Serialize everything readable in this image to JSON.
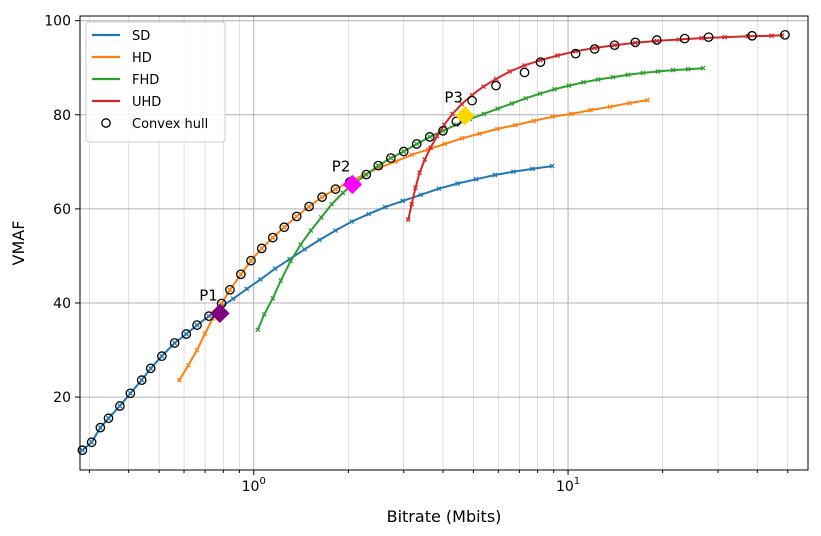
{
  "chart_data": {
    "type": "line",
    "title": "",
    "xlabel": "Bitrate (Mbits)",
    "ylabel": "VMAF",
    "xscale": "log",
    "xlim": [
      0.28,
      58
    ],
    "ylim": [
      4.5,
      101
    ],
    "y_ticks": [
      20,
      40,
      60,
      80,
      100
    ],
    "x_major_ticks": [
      {
        "value": 1,
        "base": "10",
        "exp": "0"
      },
      {
        "value": 10,
        "base": "10",
        "exp": "1"
      }
    ],
    "grid": true,
    "legend_position": "top-left",
    "series": [
      {
        "name": "SD",
        "color": "#1f77b4",
        "x": [
          0.285,
          0.305,
          0.325,
          0.345,
          0.375,
          0.405,
          0.44,
          0.47,
          0.51,
          0.56,
          0.61,
          0.66,
          0.72,
          0.78,
          0.86,
          0.95,
          1.05,
          1.17,
          1.3,
          1.45,
          1.62,
          1.82,
          2.05,
          2.32,
          2.62,
          2.98,
          3.4,
          3.88,
          4.45,
          5.1,
          5.85,
          6.7,
          7.7,
          8.9
        ],
        "y": [
          8.7,
          10.4,
          13.5,
          15.5,
          18.1,
          20.8,
          23.6,
          26.1,
          28.7,
          31.5,
          33.4,
          35.3,
          37.2,
          39.0,
          40.9,
          43.0,
          45.0,
          47.3,
          49.3,
          51.4,
          53.4,
          55.4,
          57.3,
          58.9,
          60.4,
          61.7,
          63.0,
          64.3,
          65.4,
          66.3,
          67.2,
          67.9,
          68.5,
          69.1
        ]
      },
      {
        "name": "HD",
        "color": "#ff7f0e",
        "x": [
          0.58,
          0.62,
          0.66,
          0.7,
          0.74,
          0.79,
          0.84,
          0.91,
          0.98,
          1.06,
          1.15,
          1.25,
          1.37,
          1.5,
          1.65,
          1.82,
          2.02,
          2.25,
          2.52,
          2.83,
          3.18,
          3.58,
          4.05,
          4.6,
          5.23,
          5.96,
          6.8,
          7.78,
          8.92,
          10.25,
          11.8,
          13.6,
          15.7,
          17.9
        ],
        "y": [
          23.6,
          26.8,
          30.0,
          33.5,
          36.7,
          39.9,
          42.8,
          46.1,
          49.0,
          51.6,
          53.9,
          56.1,
          58.4,
          60.5,
          62.5,
          64.2,
          65.7,
          67.3,
          68.8,
          70.1,
          71.5,
          72.6,
          73.8,
          75.0,
          76.0,
          77.0,
          77.8,
          78.7,
          79.6,
          80.2,
          81.0,
          81.7,
          82.5,
          83.1
        ]
      },
      {
        "name": "FHD",
        "color": "#2ca02c",
        "x": [
          1.03,
          1.08,
          1.15,
          1.22,
          1.31,
          1.41,
          1.52,
          1.64,
          1.77,
          1.92,
          2.09,
          2.28,
          2.49,
          2.73,
          3.0,
          3.3,
          3.63,
          4.0,
          4.41,
          4.87,
          5.39,
          5.97,
          6.62,
          7.34,
          8.15,
          9.05,
          10.06,
          11.2,
          12.47,
          13.9,
          15.5,
          17.3,
          19.3,
          21.6,
          24.1,
          26.9
        ],
        "y": [
          34.3,
          37.6,
          41.0,
          44.8,
          48.9,
          52.4,
          55.4,
          58.2,
          61.0,
          63.4,
          65.4,
          67.3,
          69.2,
          70.8,
          72.2,
          73.8,
          75.3,
          76.6,
          77.9,
          79.1,
          80.2,
          81.3,
          82.4,
          83.5,
          84.5,
          85.4,
          86.2,
          86.9,
          87.5,
          88.0,
          88.5,
          88.9,
          89.2,
          89.5,
          89.7,
          89.9
        ]
      },
      {
        "name": "UHD",
        "color": "#d62728",
        "x": [
          3.1,
          3.18,
          3.27,
          3.37,
          3.5,
          3.65,
          3.83,
          4.04,
          4.29,
          4.59,
          4.95,
          5.38,
          5.9,
          6.52,
          7.27,
          8.17,
          9.26,
          10.57,
          12.15,
          14.06,
          16.37,
          19.16,
          22.5,
          26.6,
          31.5,
          37.4,
          44.4,
          48.0
        ],
        "y": [
          57.7,
          61.0,
          64.5,
          67.7,
          70.5,
          73.0,
          75.5,
          77.9,
          80.2,
          82.3,
          84.2,
          86.0,
          87.6,
          89.2,
          90.5,
          91.6,
          92.6,
          93.5,
          94.2,
          94.8,
          95.3,
          95.7,
          96.0,
          96.3,
          96.5,
          96.7,
          96.8,
          96.9
        ]
      }
    ],
    "convex_hull": {
      "name": "Convex hull",
      "x": [
        0.285,
        0.305,
        0.325,
        0.345,
        0.375,
        0.405,
        0.44,
        0.47,
        0.51,
        0.56,
        0.61,
        0.66,
        0.72,
        0.79,
        0.84,
        0.91,
        0.98,
        1.06,
        1.15,
        1.25,
        1.37,
        1.5,
        1.65,
        1.82,
        2.02,
        2.28,
        2.49,
        2.73,
        3.0,
        3.3,
        3.63,
        4.0,
        4.41,
        4.95,
        5.9,
        7.27,
        8.17,
        10.57,
        12.15,
        14.06,
        16.37,
        19.16,
        23.5,
        28.0,
        38.5,
        49.0
      ],
      "y": [
        8.7,
        10.4,
        13.5,
        15.5,
        18.1,
        20.8,
        23.6,
        26.1,
        28.7,
        31.5,
        33.4,
        35.3,
        37.2,
        39.9,
        42.8,
        46.1,
        49.0,
        51.6,
        53.9,
        56.1,
        58.4,
        60.5,
        62.5,
        64.2,
        65.7,
        67.3,
        69.2,
        70.8,
        72.2,
        73.8,
        75.3,
        76.6,
        78.6,
        83.0,
        86.2,
        89.0,
        91.2,
        93.0,
        94.0,
        94.8,
        95.4,
        95.9,
        96.2,
        96.5,
        96.8,
        97.0
      ]
    },
    "points": [
      {
        "label": "P1",
        "x": 0.78,
        "y": 37.8,
        "color": "#800080"
      },
      {
        "label": "P2",
        "x": 2.06,
        "y": 65.2,
        "color": "#ff00ff"
      },
      {
        "label": "P3",
        "x": 4.7,
        "y": 79.8,
        "color": "#ffd700"
      }
    ]
  }
}
